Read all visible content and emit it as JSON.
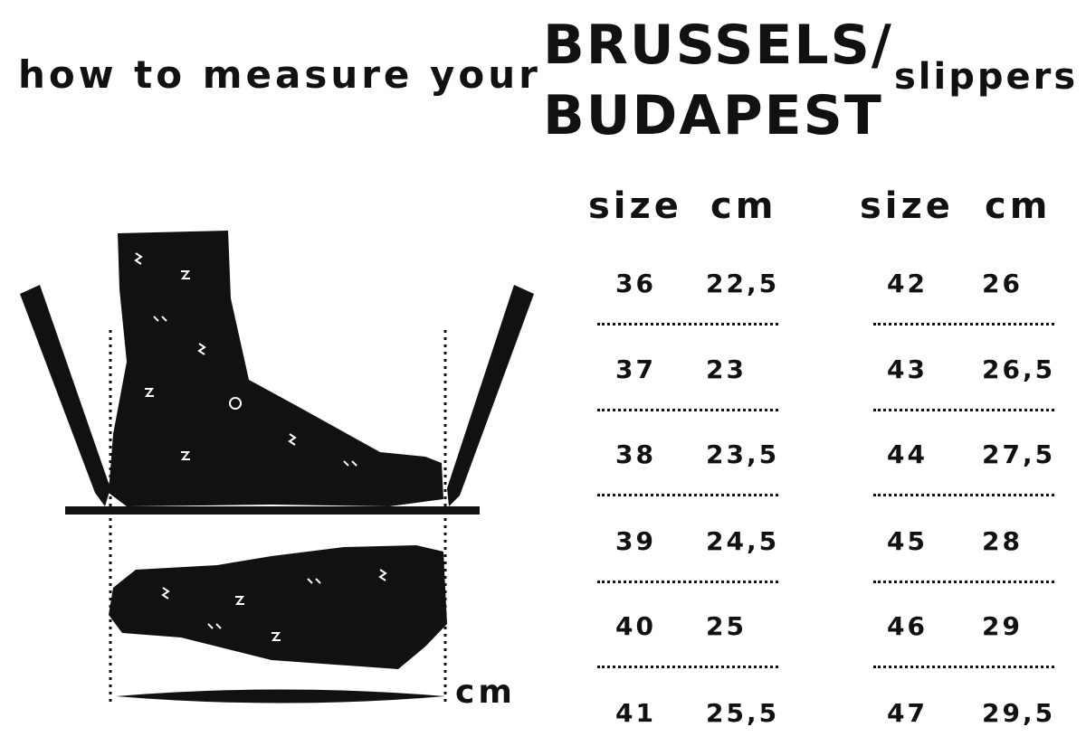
{
  "title": {
    "lead": "how to measure your",
    "model_line1": "BRUSSELS/",
    "model_line2": "BUDAPEST",
    "tail": "slippers"
  },
  "table": {
    "headers": {
      "size": "size",
      "cm": "cm"
    },
    "left": [
      {
        "size": "36",
        "cm": "22,5"
      },
      {
        "size": "37",
        "cm": "23"
      },
      {
        "size": "38",
        "cm": "23,5"
      },
      {
        "size": "39",
        "cm": "24,5"
      },
      {
        "size": "40",
        "cm": "25"
      },
      {
        "size": "41",
        "cm": "25,5"
      }
    ],
    "right": [
      {
        "size": "42",
        "cm": "26"
      },
      {
        "size": "43",
        "cm": "26,5"
      },
      {
        "size": "44",
        "cm": "27,5"
      },
      {
        "size": "45",
        "cm": "28"
      },
      {
        "size": "46",
        "cm": "29"
      },
      {
        "size": "47",
        "cm": "29,5"
      }
    ]
  },
  "illustration": {
    "unit_label": "cm"
  }
}
